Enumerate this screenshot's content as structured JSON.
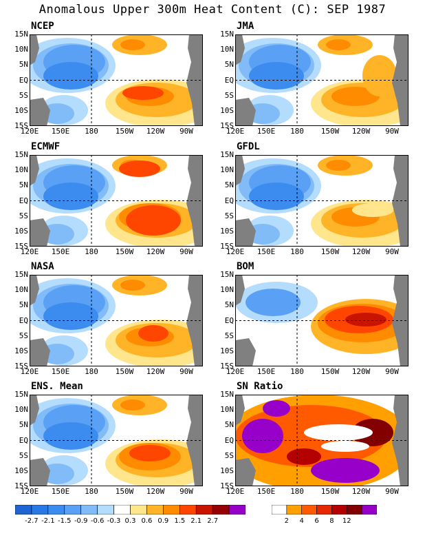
{
  "title": "Anomalous Upper 300m Heat Content (C): SEP 1987",
  "panels": [
    {
      "name": "NCEP",
      "pattern": "ncep"
    },
    {
      "name": "JMA",
      "pattern": "jma"
    },
    {
      "name": "ECMWF",
      "pattern": "ecmwf"
    },
    {
      "name": "GFDL",
      "pattern": "gfdl"
    },
    {
      "name": "NASA",
      "pattern": "nasa"
    },
    {
      "name": "BOM",
      "pattern": "bom"
    },
    {
      "name": "ENS. Mean",
      "pattern": "ens"
    },
    {
      "name": "SN Ratio",
      "pattern": "sn"
    }
  ],
  "lat_ticks": [
    "15N",
    "10N",
    "5N",
    "EQ",
    "5S",
    "10S",
    "15S"
  ],
  "lon_ticks": [
    "120E",
    "150E",
    "180",
    "150W",
    "120W",
    "90W"
  ],
  "anomaly_colorbar": {
    "labels": [
      "-2.7",
      "-2.1",
      "-1.5",
      "-0.9",
      "-0.6",
      "-0.3",
      "0.3",
      "0.6",
      "0.9",
      "1.5",
      "2.1",
      "2.7"
    ],
    "colors": [
      "#1e64d2",
      "#2878e6",
      "#3c8cf0",
      "#5aa0f5",
      "#82bcf8",
      "#b4dcfc",
      "#ffffff",
      "#ffe68c",
      "#ffb428",
      "#ff8c00",
      "#ff4600",
      "#c81400",
      "#960000",
      "#9600c8"
    ]
  },
  "sn_colorbar": {
    "labels": [
      "2",
      "4",
      "6",
      "8",
      "12"
    ],
    "colors": [
      "#ffffff",
      "#ffa000",
      "#ff5a00",
      "#e62800",
      "#b40000",
      "#820000",
      "#9600c8"
    ]
  },
  "land_color": "#808080"
}
